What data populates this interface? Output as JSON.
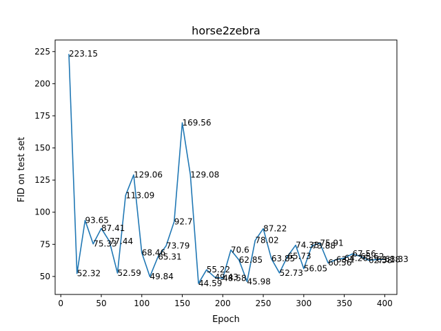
{
  "chart_data": {
    "type": "line",
    "title": "horse2zebra",
    "xlabel": "Epoch",
    "ylabel": "FID on test set",
    "xlim": [
      -7,
      415
    ],
    "ylim": [
      36,
      234
    ],
    "xticks": [
      0,
      50,
      100,
      150,
      200,
      250,
      300,
      350,
      400
    ],
    "yticks": [
      50,
      75,
      100,
      125,
      150,
      175,
      200,
      225
    ],
    "grid": false,
    "line_color": "#1f77b4",
    "x": [
      10,
      20,
      30,
      40,
      50,
      60,
      70,
      80,
      90,
      100,
      110,
      120,
      130,
      140,
      150,
      160,
      170,
      180,
      190,
      200,
      210,
      220,
      230,
      240,
      250,
      260,
      270,
      280,
      290,
      300,
      310,
      320,
      330,
      340,
      350,
      360,
      370,
      380,
      390,
      400
    ],
    "values": [
      223.15,
      52.32,
      93.65,
      75.33,
      87.41,
      77.44,
      52.59,
      113.09,
      129.06,
      68.46,
      49.84,
      65.31,
      73.79,
      92.7,
      169.56,
      129.08,
      44.59,
      55.22,
      49.43,
      48.58,
      70.6,
      62.85,
      45.98,
      78.02,
      87.22,
      63.85,
      52.73,
      65.73,
      74.33,
      56.05,
      73.88,
      75.91,
      60.56,
      63.1,
      64.26,
      67.56,
      65.62,
      62.58,
      63.18,
      63.33
    ],
    "labels": [
      "223.15",
      "52.32",
      "93.65",
      "75.33",
      "87.41",
      "77.44",
      "52.59",
      "113.09",
      "129.06",
      "68.46",
      "49.84",
      "65.31",
      "73.79",
      "92.7",
      "169.56",
      "129.08",
      "44.59",
      "55.22",
      "49.43",
      "48.58",
      "70.6",
      "62.85",
      "45.98",
      "78.02",
      "87.22",
      "63.85",
      "52.73",
      "65.73",
      "74.33",
      "56.05",
      "73.88",
      "75.91",
      "60.56",
      "63.1",
      "64.26",
      "67.56",
      "65.62",
      "62.58",
      "63.18",
      "63.33"
    ]
  }
}
